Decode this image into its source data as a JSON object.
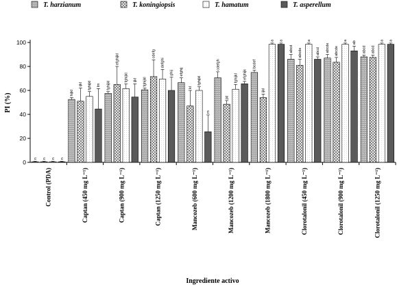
{
  "chart_data": {
    "type": "bar",
    "ylabel": "PI (%)",
    "xlabel": "Ingrediente activo",
    "ylim": [
      0,
      100
    ],
    "yticks": [
      "0",
      "20",
      "40",
      "60",
      "80",
      "100"
    ],
    "legend_position": "top",
    "categories": [
      "Control (PDA)",
      "Captan (450 mg L⁻¹)",
      "Captan (900 mg L⁻¹)",
      "Captan (1250 mg L⁻¹)",
      "Mancozeb (600 mg L⁻¹)",
      "Mancozeb (1200 mg L⁻¹)",
      "Mancozeb (1800 mg L⁻¹)",
      "Clorotalonil (450 mg L⁻¹)",
      "Clorotalonil (900 mg L⁻¹)",
      "Clorotalonil (1250 mg L⁻¹)"
    ],
    "series": [
      {
        "name": "T. harzianum",
        "fill": "#a0a0a0",
        "pattern": "dots",
        "values": [
          0.5,
          52.5,
          57.5,
          60.5,
          66.5,
          70.5,
          75,
          86,
          87,
          88
        ],
        "errors": [
          0.5,
          1.5,
          1.5,
          1.5,
          4,
          5,
          2,
          4,
          3,
          1.5
        ],
        "labels": [
          "n",
          "hijkl",
          "fghijkl",
          "fghijkl",
          "efghij",
          "cdefgh",
          "bcdef",
          "abcd",
          "abcde",
          "abcd"
        ]
      },
      {
        "name": "T. koningiopsis",
        "fill": "#f2f2f2",
        "pattern": "crosshatch",
        "values": [
          0.5,
          51,
          65,
          71.5,
          47,
          48.5,
          54,
          81,
          83.5,
          87.5
        ],
        "errors": [
          0.5,
          11,
          15,
          14,
          13,
          3,
          3,
          5,
          4,
          2
        ],
        "labels": [
          "n",
          "ijkl",
          "efghijkl",
          "cdefg",
          "kl",
          "jkl",
          "ijkl",
          "abcde",
          "abcde",
          "abcd"
        ]
      },
      {
        "name": "T. hamatum",
        "fill": "#ffffff",
        "pattern": "fine-dots",
        "values": [
          0.5,
          55,
          61.5,
          69.5,
          60,
          61,
          98.5,
          98.5,
          98.5,
          98.5
        ],
        "errors": [
          0.5,
          4,
          4,
          8,
          3,
          4,
          1,
          1,
          1,
          1
        ],
        "labels": [
          "n",
          "fghijkl",
          "fghijkl",
          "defghi",
          "fghijkl",
          "fghijkl",
          "a",
          "a",
          "a",
          "a"
        ]
      },
      {
        "name": "T. asperellum",
        "fill": "#5a5a5a",
        "pattern": "solid",
        "values": [
          0.5,
          44.5,
          54.5,
          60,
          25.5,
          65.5,
          98.5,
          86,
          93,
          98.5
        ],
        "errors": [
          0.5,
          17,
          11,
          11,
          14,
          2,
          1,
          2,
          4,
          1
        ],
        "labels": [
          "n",
          "lm",
          "ijkl",
          "ghij",
          "m",
          "efghijk",
          "a",
          "abcd",
          "ab",
          "a"
        ]
      }
    ]
  }
}
